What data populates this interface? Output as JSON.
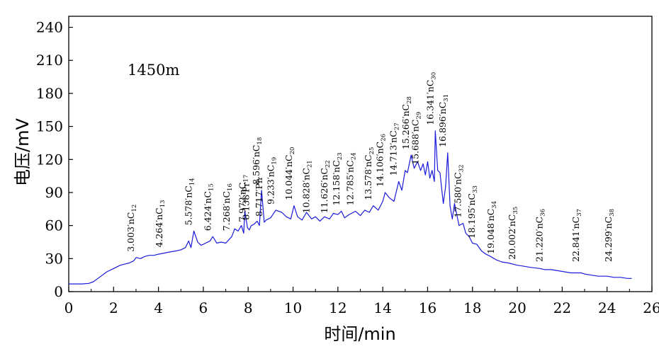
{
  "chart_data": {
    "type": "line",
    "xlabel": "时间/min",
    "ylabel": "电压/mV",
    "xlim": [
      0,
      26
    ],
    "ylim": [
      0,
      250
    ],
    "xticks": [
      "0",
      "2",
      "4",
      "6",
      "8",
      "10",
      "12",
      "14",
      "16",
      "18",
      "20",
      "22",
      "24",
      "26"
    ],
    "yticks": [
      "0",
      "30",
      "60",
      "90",
      "120",
      "150",
      "180",
      "210",
      "240"
    ],
    "annotation": "1450m",
    "line_color": "#1a1adb",
    "series": [
      {
        "x": [
          0,
          0.3,
          0.6,
          0.9,
          1.1,
          1.3,
          1.5,
          1.7,
          1.9,
          2.1,
          2.3,
          2.5,
          2.7,
          2.9,
          3.003,
          3.2,
          3.4,
          3.6,
          3.8,
          4.0,
          4.264,
          4.5,
          4.8,
          5.0,
          5.2,
          5.35,
          5.45,
          5.578,
          5.75,
          5.9,
          6.1,
          6.3,
          6.424,
          6.6,
          6.8,
          7.0,
          7.268,
          7.4,
          7.55,
          7.7,
          7.8,
          7.85,
          7.972,
          8.05,
          8.138,
          8.25,
          8.4,
          8.5,
          8.596,
          8.717,
          8.8,
          9.0,
          9.233,
          9.5,
          9.7,
          9.9,
          10.044,
          10.2,
          10.4,
          10.6,
          10.828,
          11.0,
          11.2,
          11.4,
          11.626,
          11.8,
          12.0,
          12.158,
          12.3,
          12.5,
          12.785,
          13.0,
          13.2,
          13.4,
          13.578,
          13.8,
          14.0,
          14.106,
          14.3,
          14.5,
          14.713,
          14.85,
          15.0,
          15.1,
          15.266,
          15.4,
          15.55,
          15.688,
          15.8,
          15.9,
          16.0,
          16.1,
          16.2,
          16.3,
          16.341,
          16.45,
          16.55,
          16.7,
          16.8,
          16.896,
          17.0,
          17.1,
          17.2,
          17.3,
          17.4,
          17.58,
          17.7,
          17.85,
          18.0,
          18.195,
          18.4,
          18.6,
          18.8,
          19.048,
          19.3,
          19.6,
          20.002,
          20.3,
          20.6,
          21.0,
          21.22,
          21.5,
          21.8,
          22.1,
          22.4,
          22.6,
          22.841,
          23.0,
          23.3,
          23.6,
          24.0,
          24.299,
          24.6,
          24.9,
          25.1
        ],
        "values": [
          7,
          7,
          7,
          7.5,
          9,
          12,
          15,
          18,
          20,
          22,
          24,
          25,
          26,
          28,
          31,
          30,
          32,
          33,
          33,
          34,
          35,
          36,
          37,
          38,
          40,
          46,
          40,
          55,
          45,
          42,
          44,
          46,
          50,
          44,
          45,
          44,
          50,
          57,
          55,
          60,
          53,
          73,
          58,
          56,
          60,
          61,
          64,
          60,
          92,
          63,
          65,
          67,
          74,
          72,
          68,
          66,
          78,
          68,
          65,
          72,
          66,
          68,
          64,
          68,
          66,
          71,
          70,
          73,
          67,
          70,
          73,
          69,
          74,
          72,
          78,
          74,
          82,
          90,
          85,
          82,
          100,
          92,
          110,
          108,
          124,
          112,
          118,
          110,
          116,
          106,
          118,
          103,
          110,
          100,
          146,
          110,
          108,
          80,
          95,
          126,
          78,
          66,
          80,
          70,
          60,
          62,
          53,
          50,
          44,
          43,
          37,
          34,
          32,
          29,
          27,
          26,
          24,
          23,
          22,
          21,
          20,
          20,
          19,
          18,
          17,
          17,
          17,
          16,
          15,
          14,
          14,
          13,
          13,
          12,
          12
        ]
      }
    ],
    "peak_labels": [
      {
        "t": 3.003,
        "main": "3.003′nC",
        "sub": "12"
      },
      {
        "t": 4.264,
        "main": "4.264′nC",
        "sub": "13"
      },
      {
        "t": 5.578,
        "main": "5.578′nC",
        "sub": "14"
      },
      {
        "t": 6.424,
        "main": "6.424′nC",
        "sub": "15"
      },
      {
        "t": 7.268,
        "main": "7.268′nC",
        "sub": "16"
      },
      {
        "t": 7.972,
        "main": "7.972′nC",
        "sub": "17"
      },
      {
        "t": 8.138,
        "main": "8.138′Pr",
        "sub": ""
      },
      {
        "t": 8.596,
        "main": "8.596′nC",
        "sub": "18"
      },
      {
        "t": 8.717,
        "main": "8.717′Ph",
        "sub": ""
      },
      {
        "t": 9.233,
        "main": "9.233′nC",
        "sub": "19"
      },
      {
        "t": 10.044,
        "main": "10.044′nC",
        "sub": "20"
      },
      {
        "t": 10.828,
        "main": "10.828′nC",
        "sub": "21"
      },
      {
        "t": 11.626,
        "main": "11.626′nC",
        "sub": "22"
      },
      {
        "t": 12.158,
        "main": "12.158′nC",
        "sub": "23"
      },
      {
        "t": 12.785,
        "main": "12.785′nC",
        "sub": "24"
      },
      {
        "t": 13.578,
        "main": "13.578′nC",
        "sub": "25"
      },
      {
        "t": 14.106,
        "main": "14.106′nC",
        "sub": "26"
      },
      {
        "t": 14.713,
        "main": "14.713′nC",
        "sub": "27"
      },
      {
        "t": 15.266,
        "main": "15.266′nC",
        "sub": "28"
      },
      {
        "t": 15.688,
        "main": "15.688′nC",
        "sub": "29"
      },
      {
        "t": 16.341,
        "main": "16.341′nC",
        "sub": "30"
      },
      {
        "t": 16.896,
        "main": "16.896′nC",
        "sub": "31"
      },
      {
        "t": 17.58,
        "main": "17.580′nC",
        "sub": "32"
      },
      {
        "t": 18.195,
        "main": "18.195′nC",
        "sub": "33"
      },
      {
        "t": 19.048,
        "main": "19.048′nC",
        "sub": "34"
      },
      {
        "t": 20.002,
        "main": "20.002′nC",
        "sub": "35"
      },
      {
        "t": 21.22,
        "main": "21.220′nC",
        "sub": "36"
      },
      {
        "t": 22.841,
        "main": "22.841′nC",
        "sub": "37"
      },
      {
        "t": 24.299,
        "main": "24.299′nC",
        "sub": "38"
      }
    ]
  }
}
